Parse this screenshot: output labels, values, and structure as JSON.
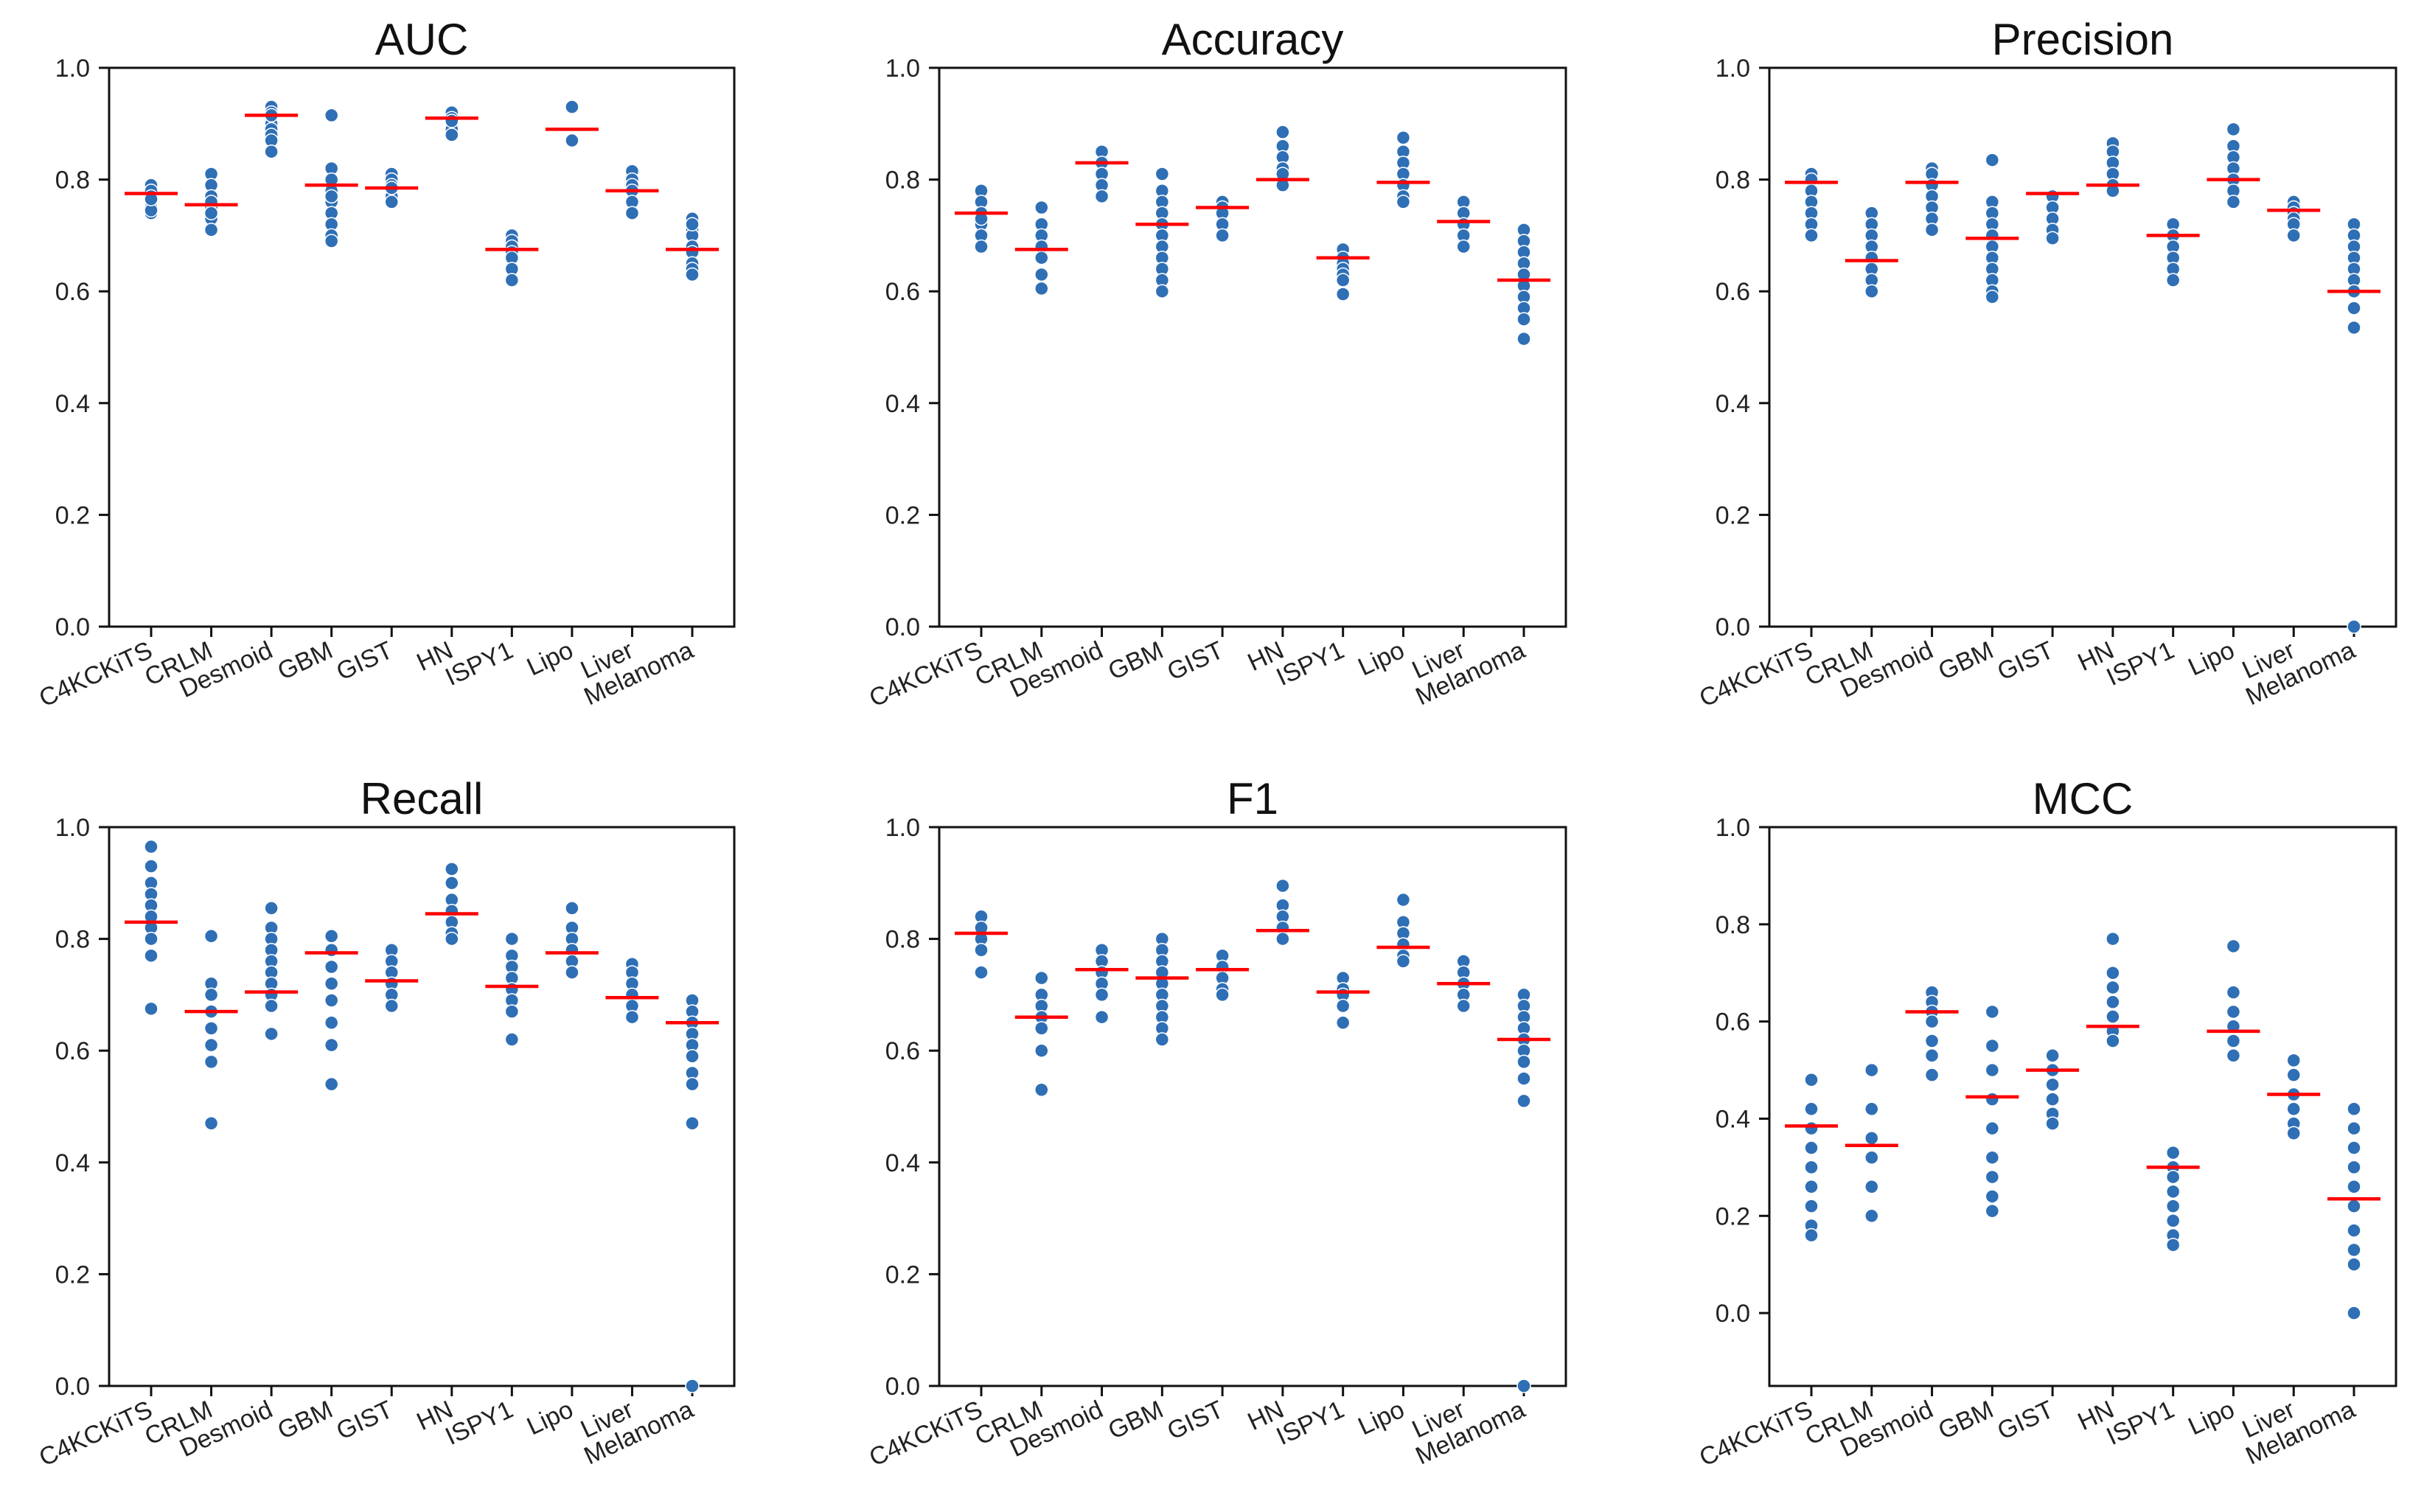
{
  "chart_data": [
    {
      "type": "scatter",
      "title": "AUC",
      "categories": [
        "C4KCKiTS",
        "CRLM",
        "Desmoid",
        "GBM",
        "GIST",
        "HN",
        "ISPY1",
        "Lipo",
        "Liver",
        "Melanoma"
      ],
      "ylim": [
        0.0,
        1.0
      ],
      "yticks": [
        "0.0",
        "0.2",
        "0.4",
        "0.6",
        "0.8",
        "1.0"
      ],
      "means": [
        0.775,
        0.755,
        0.915,
        0.79,
        0.785,
        0.91,
        0.675,
        0.89,
        0.78,
        0.675
      ],
      "points": [
        [
          0.79,
          0.78,
          0.77,
          0.76,
          0.75,
          0.74,
          0.745,
          0.765
        ],
        [
          0.81,
          0.79,
          0.77,
          0.75,
          0.73,
          0.71,
          0.76,
          0.74
        ],
        [
          0.93,
          0.92,
          0.91,
          0.9,
          0.89,
          0.88,
          0.87,
          0.85,
          0.915
        ],
        [
          0.915,
          0.82,
          0.8,
          0.78,
          0.76,
          0.74,
          0.72,
          0.7,
          0.69,
          0.77
        ],
        [
          0.81,
          0.8,
          0.79,
          0.78,
          0.77,
          0.76,
          0.785
        ],
        [
          0.92,
          0.91,
          0.9,
          0.89,
          0.88,
          0.905
        ],
        [
          0.7,
          0.69,
          0.68,
          0.67,
          0.66,
          0.64,
          0.62
        ],
        [
          0.93,
          0.87
        ],
        [
          0.815,
          0.8,
          0.79,
          0.78,
          0.76,
          0.74
        ],
        [
          0.73,
          0.71,
          0.7,
          0.68,
          0.67,
          0.65,
          0.64,
          0.63,
          0.72
        ]
      ]
    },
    {
      "type": "scatter",
      "title": "Accuracy",
      "categories": [
        "C4KCKiTS",
        "CRLM",
        "Desmoid",
        "GBM",
        "GIST",
        "HN",
        "ISPY1",
        "Lipo",
        "Liver",
        "Melanoma"
      ],
      "ylim": [
        0.0,
        1.0
      ],
      "yticks": [
        "0.0",
        "0.2",
        "0.4",
        "0.6",
        "0.8",
        "1.0"
      ],
      "means": [
        0.74,
        0.675,
        0.83,
        0.72,
        0.75,
        0.8,
        0.66,
        0.795,
        0.725,
        0.62
      ],
      "points": [
        [
          0.78,
          0.76,
          0.74,
          0.72,
          0.7,
          0.68,
          0.73
        ],
        [
          0.75,
          0.72,
          0.7,
          0.68,
          0.66,
          0.63,
          0.605
        ],
        [
          0.85,
          0.83,
          0.81,
          0.79,
          0.77
        ],
        [
          0.81,
          0.78,
          0.76,
          0.74,
          0.72,
          0.7,
          0.68,
          0.66,
          0.64,
          0.62,
          0.6
        ],
        [
          0.76,
          0.75,
          0.74,
          0.72,
          0.7
        ],
        [
          0.885,
          0.86,
          0.84,
          0.82,
          0.8,
          0.79,
          0.81
        ],
        [
          0.675,
          0.66,
          0.65,
          0.64,
          0.63,
          0.62,
          0.595
        ],
        [
          0.875,
          0.85,
          0.83,
          0.81,
          0.79,
          0.77,
          0.76
        ],
        [
          0.76,
          0.74,
          0.72,
          0.7,
          0.68
        ],
        [
          0.71,
          0.69,
          0.67,
          0.65,
          0.63,
          0.61,
          0.59,
          0.57,
          0.55,
          0.515
        ]
      ]
    },
    {
      "type": "scatter",
      "title": "Precision",
      "categories": [
        "C4KCKiTS",
        "CRLM",
        "Desmoid",
        "GBM",
        "GIST",
        "HN",
        "ISPY1",
        "Lipo",
        "Liver",
        "Melanoma"
      ],
      "ylim": [
        0.0,
        1.0
      ],
      "yticks": [
        "0.0",
        "0.2",
        "0.4",
        "0.6",
        "0.8",
        "1.0"
      ],
      "means": [
        0.795,
        0.655,
        0.795,
        0.695,
        0.775,
        0.79,
        0.7,
        0.8,
        0.745,
        0.6
      ],
      "points": [
        [
          0.81,
          0.8,
          0.78,
          0.76,
          0.74,
          0.72,
          0.7
        ],
        [
          0.74,
          0.72,
          0.7,
          0.68,
          0.66,
          0.64,
          0.62,
          0.6
        ],
        [
          0.82,
          0.81,
          0.79,
          0.77,
          0.75,
          0.73,
          0.71
        ],
        [
          0.835,
          0.76,
          0.74,
          0.72,
          0.7,
          0.68,
          0.66,
          0.64,
          0.62,
          0.6,
          0.59
        ],
        [
          0.77,
          0.75,
          0.73,
          0.71,
          0.695
        ],
        [
          0.865,
          0.85,
          0.83,
          0.81,
          0.79,
          0.78
        ],
        [
          0.72,
          0.7,
          0.68,
          0.66,
          0.64,
          0.62
        ],
        [
          0.89,
          0.86,
          0.84,
          0.82,
          0.8,
          0.78,
          0.76
        ],
        [
          0.76,
          0.75,
          0.74,
          0.73,
          0.72,
          0.7
        ],
        [
          0.72,
          0.7,
          0.68,
          0.66,
          0.64,
          0.62,
          0.6,
          0.57,
          0.535,
          0.0
        ]
      ]
    },
    {
      "type": "scatter",
      "title": "Recall",
      "categories": [
        "C4KCKiTS",
        "CRLM",
        "Desmoid",
        "GBM",
        "GIST",
        "HN",
        "ISPY1",
        "Lipo",
        "Liver",
        "Melanoma"
      ],
      "ylim": [
        0.0,
        1.0
      ],
      "yticks": [
        "0.0",
        "0.2",
        "0.4",
        "0.6",
        "0.8",
        "1.0"
      ],
      "means": [
        0.83,
        0.67,
        0.705,
        0.775,
        0.725,
        0.845,
        0.715,
        0.775,
        0.695,
        0.65
      ],
      "points": [
        [
          0.965,
          0.93,
          0.9,
          0.88,
          0.86,
          0.84,
          0.82,
          0.8,
          0.77,
          0.675
        ],
        [
          0.805,
          0.72,
          0.7,
          0.67,
          0.64,
          0.61,
          0.58,
          0.47
        ],
        [
          0.855,
          0.82,
          0.8,
          0.78,
          0.76,
          0.74,
          0.72,
          0.7,
          0.68,
          0.63
        ],
        [
          0.805,
          0.78,
          0.75,
          0.72,
          0.69,
          0.65,
          0.61,
          0.54
        ],
        [
          0.78,
          0.76,
          0.74,
          0.72,
          0.7,
          0.68
        ],
        [
          0.925,
          0.9,
          0.87,
          0.85,
          0.83,
          0.81,
          0.8
        ],
        [
          0.8,
          0.77,
          0.75,
          0.73,
          0.71,
          0.69,
          0.67,
          0.62
        ],
        [
          0.855,
          0.82,
          0.8,
          0.78,
          0.76,
          0.74
        ],
        [
          0.755,
          0.74,
          0.72,
          0.7,
          0.68,
          0.66
        ],
        [
          0.69,
          0.67,
          0.65,
          0.63,
          0.61,
          0.59,
          0.56,
          0.54,
          0.47,
          0.0
        ]
      ]
    },
    {
      "type": "scatter",
      "title": "F1",
      "categories": [
        "C4KCKiTS",
        "CRLM",
        "Desmoid",
        "GBM",
        "GIST",
        "HN",
        "ISPY1",
        "Lipo",
        "Liver",
        "Melanoma"
      ],
      "ylim": [
        0.0,
        1.0
      ],
      "yticks": [
        "0.0",
        "0.2",
        "0.4",
        "0.6",
        "0.8",
        "1.0"
      ],
      "means": [
        0.81,
        0.66,
        0.745,
        0.73,
        0.745,
        0.815,
        0.705,
        0.785,
        0.72,
        0.62
      ],
      "points": [
        [
          0.84,
          0.82,
          0.8,
          0.78,
          0.74
        ],
        [
          0.73,
          0.7,
          0.68,
          0.66,
          0.64,
          0.6,
          0.53
        ],
        [
          0.78,
          0.76,
          0.74,
          0.72,
          0.7,
          0.66
        ],
        [
          0.8,
          0.78,
          0.76,
          0.74,
          0.72,
          0.7,
          0.68,
          0.66,
          0.64,
          0.62
        ],
        [
          0.77,
          0.75,
          0.73,
          0.71,
          0.7
        ],
        [
          0.895,
          0.86,
          0.84,
          0.82,
          0.8
        ],
        [
          0.73,
          0.71,
          0.7,
          0.68,
          0.65
        ],
        [
          0.87,
          0.83,
          0.81,
          0.79,
          0.77,
          0.76
        ],
        [
          0.76,
          0.74,
          0.72,
          0.7,
          0.68
        ],
        [
          0.7,
          0.68,
          0.66,
          0.64,
          0.62,
          0.6,
          0.58,
          0.55,
          0.51,
          0.0
        ]
      ]
    },
    {
      "type": "scatter",
      "title": "MCC",
      "categories": [
        "C4KCKiTS",
        "CRLM",
        "Desmoid",
        "GBM",
        "GIST",
        "HN",
        "ISPY1",
        "Lipo",
        "Liver",
        "Melanoma"
      ],
      "ylim": [
        -0.15,
        1.0
      ],
      "yticks": [
        "0.0",
        "0.2",
        "0.4",
        "0.6",
        "0.8",
        "1.0"
      ],
      "means": [
        0.385,
        0.345,
        0.62,
        0.445,
        0.5,
        0.59,
        0.3,
        0.58,
        0.45,
        0.235
      ],
      "points": [
        [
          0.48,
          0.42,
          0.38,
          0.34,
          0.3,
          0.26,
          0.22,
          0.18,
          0.16
        ],
        [
          0.5,
          0.42,
          0.36,
          0.32,
          0.26,
          0.2
        ],
        [
          0.66,
          0.64,
          0.62,
          0.6,
          0.56,
          0.53,
          0.49
        ],
        [
          0.62,
          0.55,
          0.5,
          0.44,
          0.38,
          0.32,
          0.28,
          0.24,
          0.21
        ],
        [
          0.53,
          0.5,
          0.47,
          0.44,
          0.41,
          0.39
        ],
        [
          0.77,
          0.7,
          0.67,
          0.64,
          0.61,
          0.58,
          0.56
        ],
        [
          0.33,
          0.3,
          0.28,
          0.25,
          0.22,
          0.19,
          0.16,
          0.14
        ],
        [
          0.755,
          0.66,
          0.62,
          0.59,
          0.56,
          0.53
        ],
        [
          0.52,
          0.49,
          0.45,
          0.42,
          0.39,
          0.37
        ],
        [
          0.42,
          0.38,
          0.34,
          0.3,
          0.26,
          0.22,
          0.17,
          0.13,
          0.1,
          0.0
        ]
      ]
    }
  ]
}
